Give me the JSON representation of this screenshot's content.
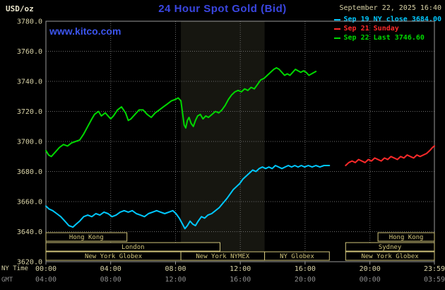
{
  "header": {
    "units_label": "USD/oz",
    "title": "24 Hour Spot Gold (Bid)",
    "datetime": "September 22, 2025 16:40",
    "watermark": "www.kitco.com"
  },
  "legend": {
    "items": [
      {
        "label": "Sep 19 NY close 3684.00",
        "color": "#00c8ff"
      },
      {
        "label": "Sep 21 Sunday",
        "color": "#ff2a2a"
      },
      {
        "label": "Sep 22 Last 3746.60",
        "color": "#00d800"
      }
    ]
  },
  "axes": {
    "ny_label": "NY Time",
    "gmt_label": "GMT",
    "ny_ticks": [
      "00:00",
      "04:00",
      "08:00",
      "12:00",
      "16:00",
      "20:00",
      "23:59"
    ],
    "gmt_ticks": [
      "04:00",
      "08:00",
      "12:00",
      "16:00",
      "20:00",
      "00:00",
      "03:59"
    ]
  },
  "chart_data": {
    "type": "line",
    "title": "24 Hour Spot Gold (Bid)",
    "ylabel": "USD/oz",
    "ylim": [
      3620,
      3780
    ],
    "y_ticks": [
      3780,
      3760,
      3740,
      3720,
      3700,
      3680,
      3660,
      3640,
      3620
    ],
    "x_range_minutes": [
      0,
      1439
    ],
    "x_tick_minutes": [
      0,
      240,
      480,
      720,
      960,
      1200,
      1439
    ],
    "grid": true,
    "legend_position": "top-right",
    "prev_close": 3684.0,
    "last_value": 3746.6,
    "shaded_band_minutes": [
      500,
      810
    ],
    "colors": {
      "accent_blue": "#3a46e0",
      "grid": "#6b6b6b",
      "frame": "#9a9a9a",
      "axis_text": "#d9d3a7",
      "gmt_text": "#8f8f8f",
      "session": "#cfc37a",
      "band": "#161610",
      "background": "#000000"
    },
    "sessions": [
      {
        "row": 0,
        "label": "Hong Kong",
        "start": 0,
        "end": 300
      },
      {
        "row": 0,
        "label": "Hong Kong",
        "start": 1230,
        "end": 1439
      },
      {
        "row": 1,
        "label": "London",
        "start": 0,
        "end": 645
      },
      {
        "row": 1,
        "label": "Sydney",
        "start": 1110,
        "end": 1439
      },
      {
        "row": 2,
        "label": "New York Globex",
        "start": 0,
        "end": 500
      },
      {
        "row": 2,
        "label": "New York NYMEX",
        "start": 500,
        "end": 810
      },
      {
        "row": 2,
        "label": "NY Globex",
        "start": 810,
        "end": 1050
      },
      {
        "row": 2,
        "label": "New York Globex",
        "start": 1110,
        "end": 1439
      }
    ],
    "series": [
      {
        "name": "Sep 19 NY close",
        "color": "#00c8ff",
        "points": [
          [
            0,
            3657
          ],
          [
            12,
            3655
          ],
          [
            25,
            3654
          ],
          [
            40,
            3652
          ],
          [
            55,
            3650
          ],
          [
            70,
            3647
          ],
          [
            85,
            3644
          ],
          [
            100,
            3643
          ],
          [
            112,
            3645
          ],
          [
            125,
            3647
          ],
          [
            140,
            3650
          ],
          [
            155,
            3651
          ],
          [
            170,
            3650
          ],
          [
            185,
            3652
          ],
          [
            200,
            3651
          ],
          [
            215,
            3653
          ],
          [
            230,
            3652
          ],
          [
            245,
            3650
          ],
          [
            260,
            3651
          ],
          [
            275,
            3653
          ],
          [
            290,
            3654
          ],
          [
            305,
            3653
          ],
          [
            320,
            3654
          ],
          [
            335,
            3652
          ],
          [
            350,
            3651
          ],
          [
            365,
            3650
          ],
          [
            380,
            3652
          ],
          [
            395,
            3653
          ],
          [
            410,
            3654
          ],
          [
            425,
            3653
          ],
          [
            440,
            3652
          ],
          [
            455,
            3653
          ],
          [
            470,
            3654
          ],
          [
            482,
            3652
          ],
          [
            494,
            3649
          ],
          [
            506,
            3645
          ],
          [
            515,
            3642
          ],
          [
            524,
            3644
          ],
          [
            534,
            3647
          ],
          [
            544,
            3645
          ],
          [
            554,
            3644
          ],
          [
            564,
            3647
          ],
          [
            576,
            3650
          ],
          [
            588,
            3649
          ],
          [
            600,
            3651
          ],
          [
            614,
            3652
          ],
          [
            628,
            3654
          ],
          [
            642,
            3656
          ],
          [
            656,
            3659
          ],
          [
            670,
            3662
          ],
          [
            682,
            3665
          ],
          [
            694,
            3668
          ],
          [
            706,
            3670
          ],
          [
            718,
            3672
          ],
          [
            730,
            3675
          ],
          [
            742,
            3677
          ],
          [
            754,
            3679
          ],
          [
            766,
            3681
          ],
          [
            778,
            3680
          ],
          [
            790,
            3682
          ],
          [
            802,
            3683
          ],
          [
            814,
            3682
          ],
          [
            826,
            3683
          ],
          [
            838,
            3682
          ],
          [
            850,
            3684
          ],
          [
            862,
            3683
          ],
          [
            874,
            3682
          ],
          [
            886,
            3683
          ],
          [
            898,
            3684
          ],
          [
            910,
            3683
          ],
          [
            922,
            3684
          ],
          [
            934,
            3683
          ],
          [
            946,
            3684
          ],
          [
            958,
            3683
          ],
          [
            972,
            3684
          ],
          [
            986,
            3683
          ],
          [
            1000,
            3684
          ],
          [
            1015,
            3683
          ],
          [
            1030,
            3684
          ],
          [
            1050,
            3684
          ]
        ]
      },
      {
        "name": "Sep 21 Sunday",
        "color": "#ff2a2a",
        "points": [
          [
            1110,
            3684
          ],
          [
            1122,
            3686
          ],
          [
            1134,
            3687
          ],
          [
            1146,
            3686
          ],
          [
            1158,
            3688
          ],
          [
            1170,
            3687
          ],
          [
            1182,
            3686
          ],
          [
            1194,
            3688
          ],
          [
            1206,
            3687
          ],
          [
            1218,
            3689
          ],
          [
            1230,
            3688
          ],
          [
            1242,
            3687
          ],
          [
            1254,
            3689
          ],
          [
            1266,
            3688
          ],
          [
            1278,
            3690
          ],
          [
            1290,
            3689
          ],
          [
            1302,
            3688
          ],
          [
            1314,
            3690
          ],
          [
            1326,
            3689
          ],
          [
            1338,
            3691
          ],
          [
            1350,
            3690
          ],
          [
            1362,
            3689
          ],
          [
            1374,
            3691
          ],
          [
            1386,
            3690
          ],
          [
            1398,
            3691
          ],
          [
            1410,
            3692
          ],
          [
            1422,
            3694
          ],
          [
            1432,
            3696
          ],
          [
            1439,
            3697
          ]
        ]
      },
      {
        "name": "Sep 22 Last",
        "color": "#00d800",
        "points": [
          [
            0,
            3694
          ],
          [
            10,
            3691
          ],
          [
            20,
            3690
          ],
          [
            35,
            3693
          ],
          [
            50,
            3696
          ],
          [
            65,
            3698
          ],
          [
            80,
            3697
          ],
          [
            95,
            3699
          ],
          [
            110,
            3700
          ],
          [
            125,
            3701
          ],
          [
            140,
            3705
          ],
          [
            155,
            3710
          ],
          [
            170,
            3715
          ],
          [
            180,
            3718
          ],
          [
            195,
            3720
          ],
          [
            205,
            3717
          ],
          [
            220,
            3719
          ],
          [
            235,
            3716
          ],
          [
            240,
            3715
          ],
          [
            250,
            3717
          ],
          [
            265,
            3721
          ],
          [
            280,
            3723
          ],
          [
            295,
            3719
          ],
          [
            305,
            3714
          ],
          [
            315,
            3715
          ],
          [
            330,
            3718
          ],
          [
            345,
            3721
          ],
          [
            360,
            3721
          ],
          [
            375,
            3718
          ],
          [
            390,
            3716
          ],
          [
            405,
            3719
          ],
          [
            420,
            3721
          ],
          [
            435,
            3723
          ],
          [
            450,
            3725
          ],
          [
            465,
            3727
          ],
          [
            480,
            3728
          ],
          [
            490,
            3729
          ],
          [
            500,
            3727
          ],
          [
            506,
            3719
          ],
          [
            512,
            3711
          ],
          [
            518,
            3709
          ],
          [
            524,
            3714
          ],
          [
            530,
            3716
          ],
          [
            538,
            3712
          ],
          [
            546,
            3710
          ],
          [
            554,
            3714
          ],
          [
            562,
            3717
          ],
          [
            572,
            3718
          ],
          [
            582,
            3715
          ],
          [
            592,
            3717
          ],
          [
            602,
            3716
          ],
          [
            615,
            3718
          ],
          [
            628,
            3720
          ],
          [
            640,
            3719
          ],
          [
            652,
            3721
          ],
          [
            664,
            3724
          ],
          [
            676,
            3728
          ],
          [
            688,
            3731
          ],
          [
            700,
            3733
          ],
          [
            712,
            3734
          ],
          [
            724,
            3733
          ],
          [
            736,
            3735
          ],
          [
            748,
            3734
          ],
          [
            760,
            3736
          ],
          [
            772,
            3735
          ],
          [
            784,
            3738
          ],
          [
            796,
            3741
          ],
          [
            808,
            3742
          ],
          [
            820,
            3744
          ],
          [
            832,
            3746
          ],
          [
            844,
            3748
          ],
          [
            854,
            3749
          ],
          [
            864,
            3748
          ],
          [
            874,
            3746
          ],
          [
            884,
            3744
          ],
          [
            894,
            3745
          ],
          [
            904,
            3744
          ],
          [
            914,
            3746
          ],
          [
            924,
            3748
          ],
          [
            934,
            3747
          ],
          [
            944,
            3746
          ],
          [
            954,
            3747
          ],
          [
            964,
            3746
          ],
          [
            974,
            3744
          ],
          [
            984,
            3745
          ],
          [
            994,
            3746
          ],
          [
            1000,
            3746.6
          ]
        ]
      }
    ]
  }
}
